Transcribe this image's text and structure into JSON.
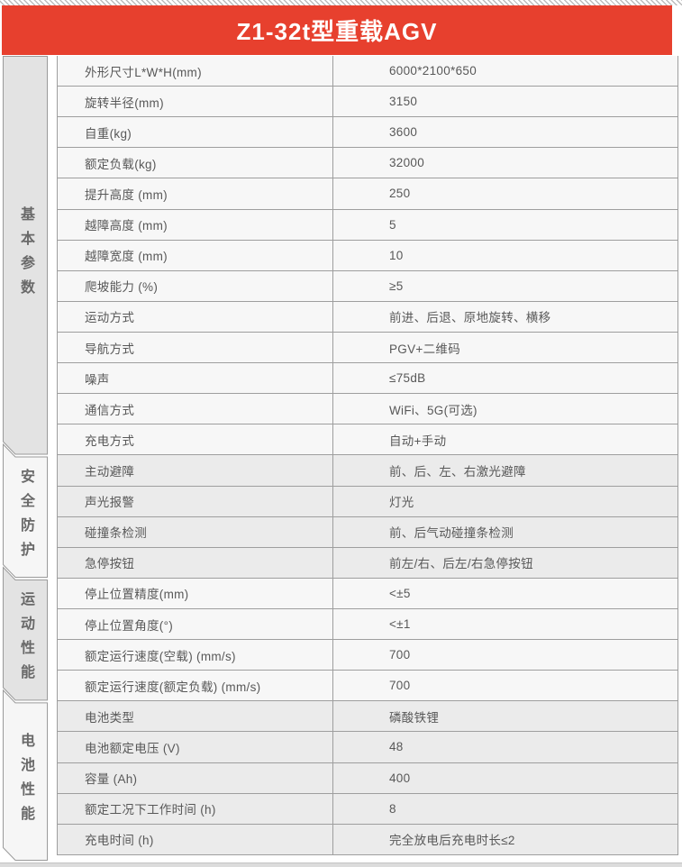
{
  "page": {
    "title": "Z1-32t型重载AGV"
  },
  "colors": {
    "header_red": "#e7402e",
    "border_gray": "#9e9e9e",
    "sidebar_block_gray": "#e3e3e3",
    "sidebar_block_light": "#f6f6f6",
    "row_bg_light": "#f7f7f7",
    "row_bg_gray": "#ebebeb",
    "text_gray": "#585858"
  },
  "sections": [
    {
      "label": "基本参数",
      "rows": [
        {
          "param": "外形尺寸L*W*H(mm)",
          "value": "6000*2100*650"
        },
        {
          "param": "旋转半径(mm)",
          "value": "3150"
        },
        {
          "param": "自重(kg)",
          "value": "3600"
        },
        {
          "param": "额定负载(kg)",
          "value": "32000"
        },
        {
          "param": "提升高度 (mm)",
          "value": "250"
        },
        {
          "param": "越障高度 (mm)",
          "value": "5"
        },
        {
          "param": "越障宽度 (mm)",
          "value": "10"
        },
        {
          "param": "爬坡能力 (%)",
          "value": "≥5"
        },
        {
          "param": "运动方式",
          "value": "前进、后退、原地旋转、横移"
        },
        {
          "param": "导航方式",
          "value": "PGV+二维码"
        },
        {
          "param": "噪声",
          "value": "≤75dB"
        },
        {
          "param": "通信方式",
          "value": "WiFi、5G(可选)"
        },
        {
          "param": "充电方式",
          "value": "自动+手动"
        }
      ]
    },
    {
      "label": "安全防护",
      "rows": [
        {
          "param": "主动避障",
          "value": "前、后、左、右激光避障"
        },
        {
          "param": "声光报警",
          "value": "灯光"
        },
        {
          "param": "碰撞条检测",
          "value": "前、后气动碰撞条检测"
        },
        {
          "param": "急停按钮",
          "value": "前左/右、后左/右急停按钮"
        }
      ]
    },
    {
      "label": "运动性能",
      "rows": [
        {
          "param": "停止位置精度(mm)",
          "value": "<±5"
        },
        {
          "param": "停止位置角度(°)",
          "value": "<±1"
        },
        {
          "param": "额定运行速度(空载) (mm/s)",
          "value": "700"
        },
        {
          "param": "额定运行速度(额定负载) (mm/s)",
          "value": "700"
        }
      ]
    },
    {
      "label": "电池性能",
      "rows": [
        {
          "param": "电池类型",
          "value": "磷酸铁锂"
        },
        {
          "param": "电池额定电压 (V)",
          "value": "48"
        },
        {
          "param": "容量 (Ah)",
          "value": "400"
        },
        {
          "param": "额定工况下工作时间 (h)",
          "value": "8"
        },
        {
          "param": "充电时间 (h)",
          "value": "完全放电后充电时长≤2"
        }
      ]
    }
  ]
}
